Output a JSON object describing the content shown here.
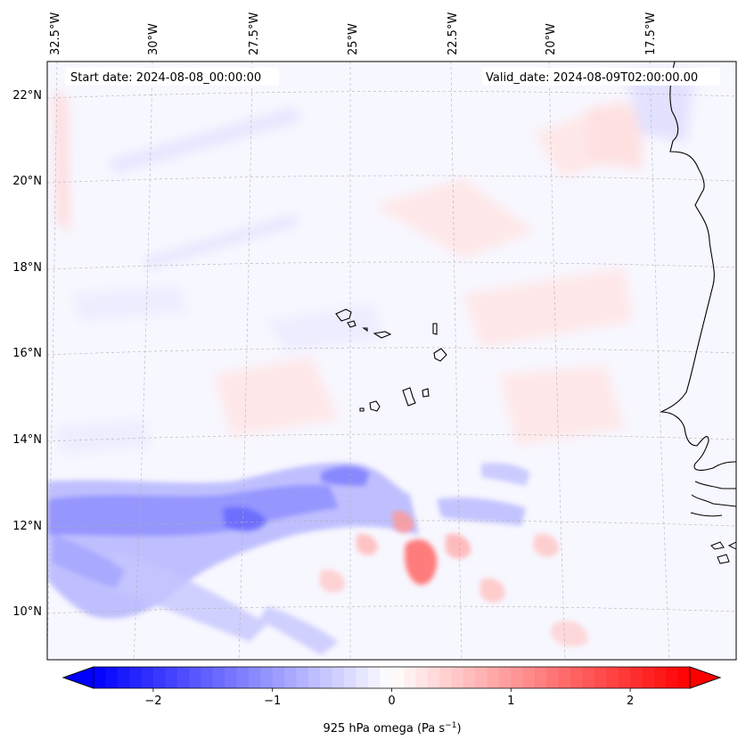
{
  "map": {
    "start_date_label": "Start date: 2024-08-08_00:00:00",
    "valid_date_label": "Valid_date: 2024-08-09T02:00:00.00",
    "lon_labels": [
      "32.5°W",
      "30°W",
      "27.5°W",
      "25°W",
      "22.5°W",
      "20°W",
      "17.5°W"
    ],
    "lat_labels": [
      "22°N",
      "20°N",
      "18°N",
      "16°N",
      "14°N",
      "12°N",
      "10°N"
    ],
    "colorbar": {
      "ticks": [
        "−2",
        "−1",
        "0",
        "1",
        "2"
      ],
      "tick_values": [
        -2,
        -1,
        0,
        1,
        2
      ],
      "range": [
        -2.5,
        2.5
      ],
      "label_main": "925 hPa omega (Pa s",
      "label_sup": "−1",
      "label_end": ")",
      "colormap": "bwr",
      "extend": "both",
      "low_color": "#0000ff",
      "mid_color": "#ffffff",
      "high_color": "#ff0000"
    },
    "field_background": "#f7f7ff",
    "coastline_color": "#000000",
    "gridline_color": "#b0b0b0"
  }
}
